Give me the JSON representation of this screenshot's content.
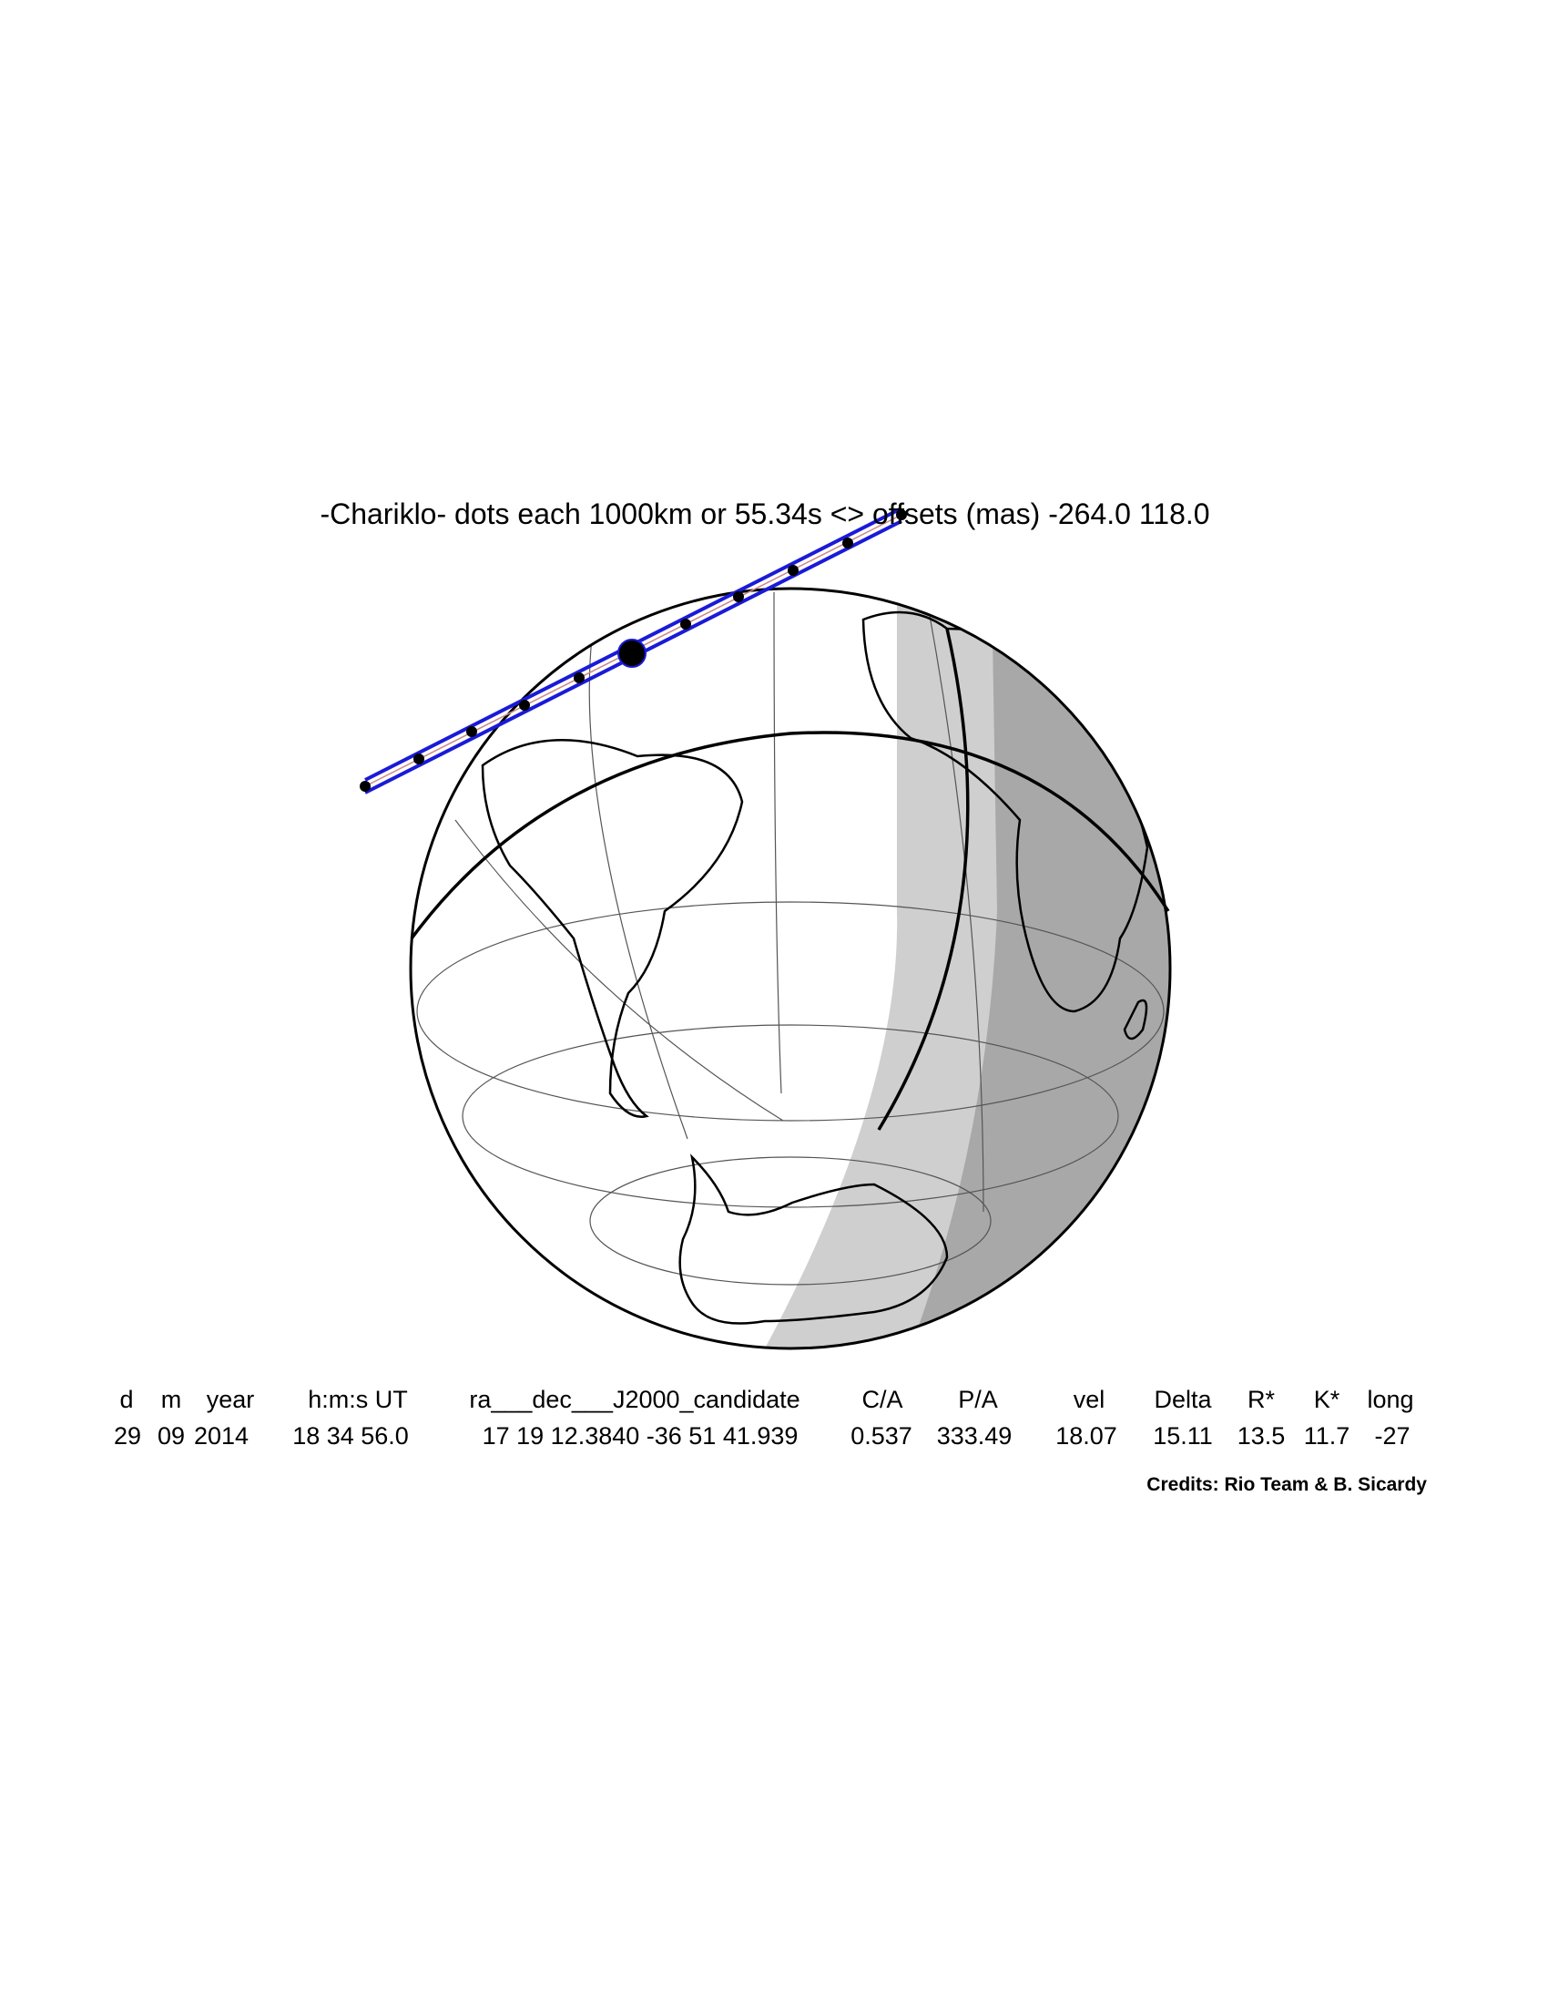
{
  "title": "-Chariklo- dots each 1000km or 55.34s <> offsets (mas) -264.0  118.0",
  "table": {
    "headers": [
      "d",
      "m",
      "year",
      "h:m:s UT",
      "ra___dec___J2000_candidate",
      "C/A",
      "P/A",
      "vel",
      "Delta",
      "R*",
      "K*",
      "long"
    ],
    "rows": [
      [
        "29",
        "09",
        "2014",
        "18 34 56.0",
        "17 19 12.3840 -36 51 41.939",
        "0.537",
        "333.49",
        "18.07",
        "15.11",
        "13.5",
        "11.7",
        "-27"
      ]
    ]
  },
  "credits": "Credits: Rio Team & B. Sicardy"
}
